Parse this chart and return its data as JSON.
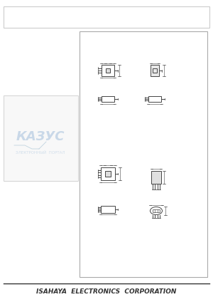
{
  "bg_color": "#e8e8e8",
  "page_bg": "#ffffff",
  "border_color": "#aaaaaa",
  "drawing_color": "#555555",
  "footer_text": "ISAHAYA  ELECTRONICS  CORPORATION",
  "footer_fontsize": 6.5,
  "watermark_text_line1": "КАЗУС",
  "watermark_text_line2": "ЭЛЕКТРОННЫЙ  ПОРТАЛ",
  "lc": "#444444",
  "lw2": 0.7,
  "sc": 0.85
}
